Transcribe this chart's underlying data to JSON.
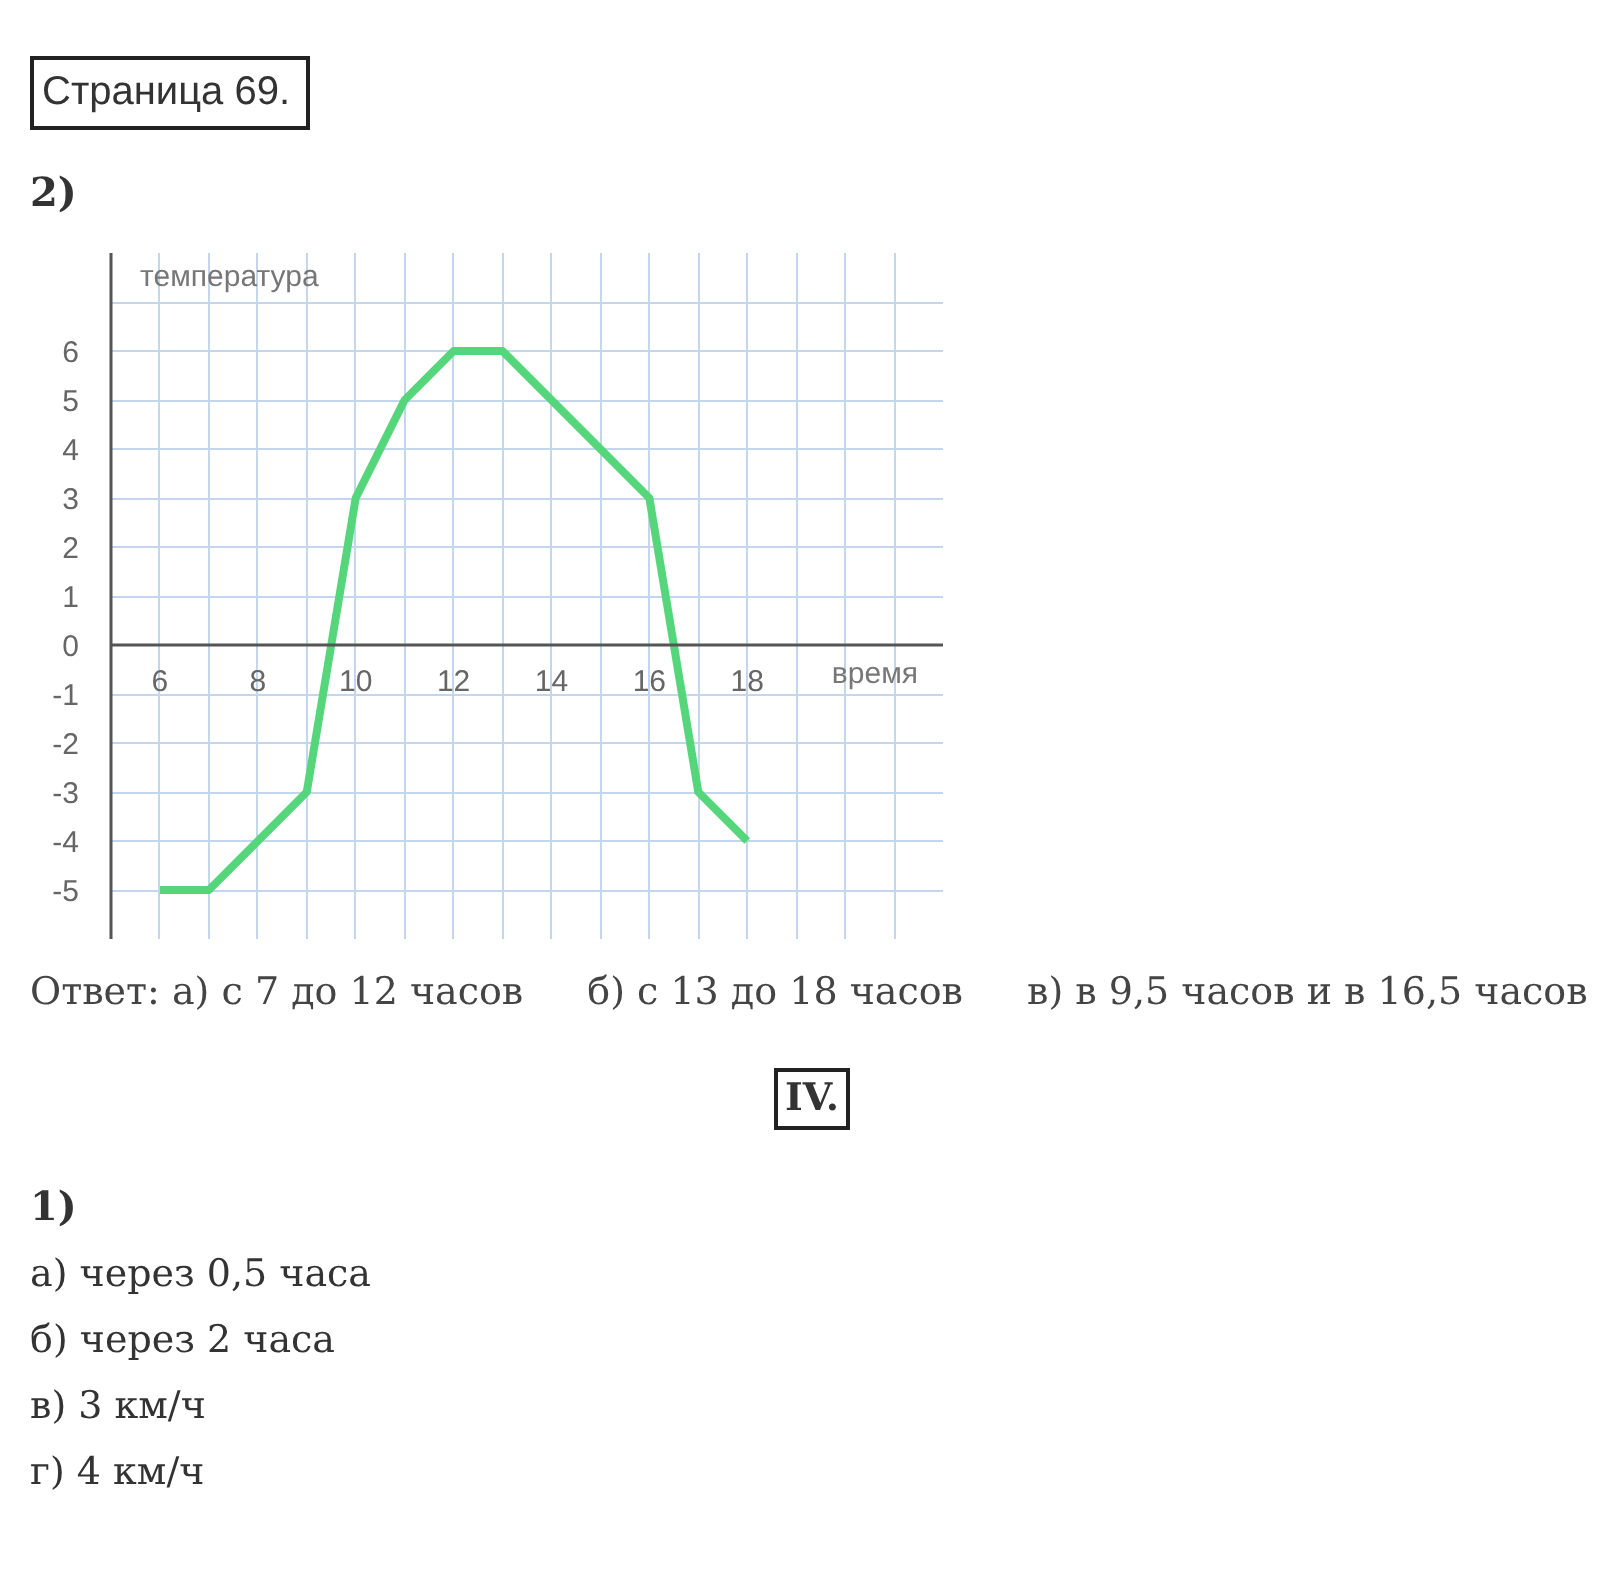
{
  "chart_data": {
    "type": "line",
    "title": "Страница 69.",
    "subtitle": "2)",
    "xlabel": "время",
    "ylabel": "температура",
    "x": [
      6,
      7,
      9,
      10,
      11,
      12,
      13,
      16,
      17,
      18
    ],
    "series": [
      {
        "color": "#55d67b",
        "values": [
          -5,
          -5,
          -3,
          3,
          5,
          6,
          6,
          3,
          -3,
          -4
        ]
      }
    ],
    "xlim": [
      5,
      22
    ],
    "ylim": [
      -6,
      8
    ],
    "xticks": [
      6,
      {
        "value": 7,
        "label": null
      },
      8,
      {
        "value": 9,
        "label": null
      },
      10,
      {
        "value": 11,
        "label": null
      },
      12,
      {
        "value": 13,
        "label": null
      },
      14,
      {
        "value": 15,
        "label": null
      },
      16,
      {
        "value": 17,
        "label": null
      },
      18,
      {
        "value": 19,
        "label": null
      },
      {
        "value": 20,
        "label": null
      },
      {
        "value": 21,
        "label": null
      }
    ],
    "yticks": [
      -5,
      -4,
      -3,
      -2,
      -1,
      0,
      1,
      2,
      3,
      4,
      5,
      6,
      {
        "value": 7,
        "label": null
      }
    ],
    "grid": true,
    "line_style": "solid",
    "annotations": [
      "Ответ: а) с 7 до 12 часов",
      "б) с 13 до 18 часов",
      "в) в 9,5 часов и в 16,5 часов",
      "IV.",
      "1)",
      "а) через 0,5 часа",
      "б) через 2 часа",
      "в) 3 км/ч",
      "г) 4 км/ч"
    ]
  }
}
